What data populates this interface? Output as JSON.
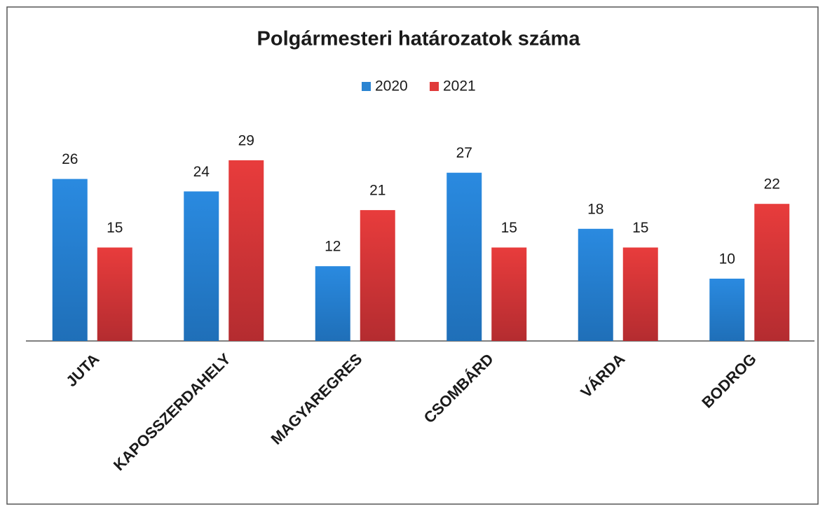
{
  "chart_data": {
    "type": "bar",
    "title": "Polgármesteri határozatok száma",
    "categories": [
      "JUTA",
      "KAPOSSZERDAHELY",
      "MAGYAREGRES",
      "CSOMBÁRD",
      "VÁRDA",
      "BODROG"
    ],
    "series": [
      {
        "name": "2020",
        "color": "#2a84d2",
        "values": [
          26,
          24,
          12,
          27,
          18,
          10
        ]
      },
      {
        "name": "2021",
        "color": "#e03a3a",
        "values": [
          15,
          29,
          21,
          15,
          15,
          22
        ]
      }
    ],
    "legend": "top"
  }
}
